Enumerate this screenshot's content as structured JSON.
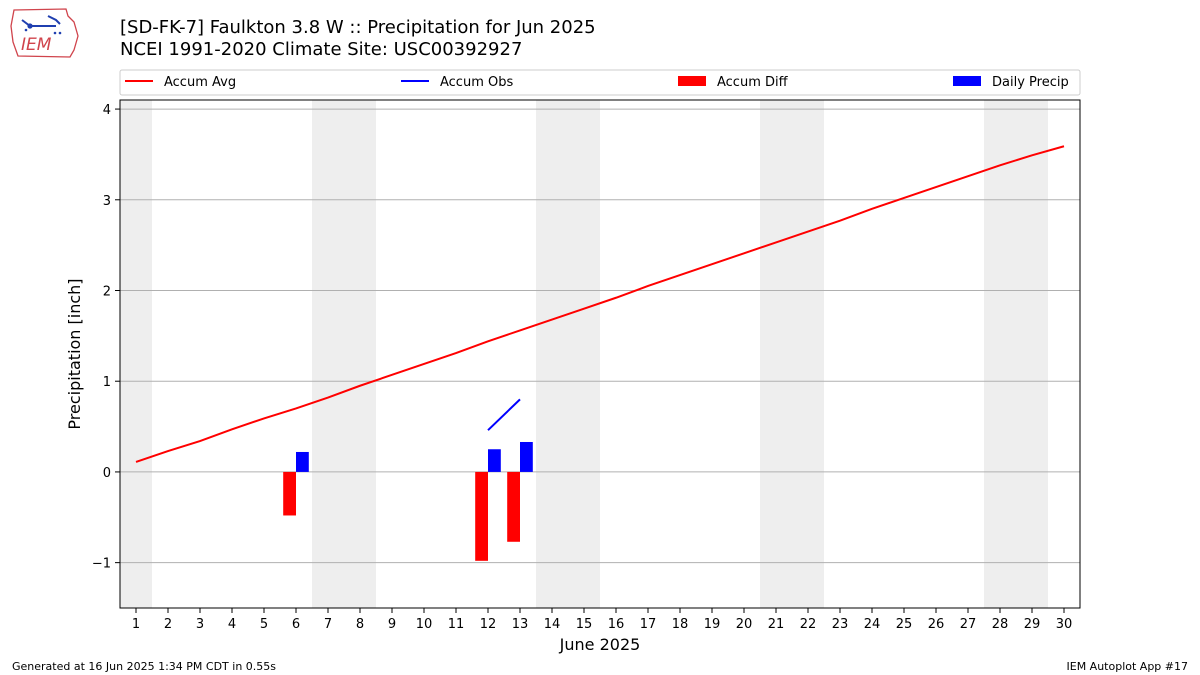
{
  "logo": {
    "text": "IEM"
  },
  "header": {
    "title_line1": "[SD-FK-7] Faulkton 3.8 W :: Precipitation for Jun 2025",
    "title_line2": "NCEI 1991-2020 Climate Site: USC00392927"
  },
  "footer": {
    "generated": "Generated at 16 Jun 2025 1:34 PM CDT in 0.55s",
    "app": "IEM Autoplot App #17"
  },
  "colors": {
    "accum_avg": "#ff0000",
    "accum_obs": "#0000ff",
    "accum_diff": "#ff0000",
    "daily_precip": "#0000ff",
    "weekend_band": "#eeeeee",
    "grid": "#b0b0b0"
  },
  "chart_data": {
    "type": "bar",
    "xlabel": "June 2025",
    "ylabel": "Precipitation [inch]",
    "xlim": [
      0.5,
      30.5
    ],
    "ylim": [
      -1.5,
      4.1
    ],
    "x_ticks": [
      1,
      2,
      3,
      4,
      5,
      6,
      7,
      8,
      9,
      10,
      11,
      12,
      13,
      14,
      15,
      16,
      17,
      18,
      19,
      20,
      21,
      22,
      23,
      24,
      25,
      26,
      27,
      28,
      29,
      30
    ],
    "y_ticks": [
      -1,
      0,
      1,
      2,
      3,
      4
    ],
    "y_tick_labels": [
      "−1",
      "0",
      "1",
      "2",
      "3",
      "4"
    ],
    "grid": "horizontal",
    "legend_position": "top",
    "legend": [
      "Accum Avg",
      "Accum Obs",
      "Accum Diff",
      "Daily Precip"
    ],
    "weekend_bands": [
      [
        0.5,
        1.5
      ],
      [
        6.5,
        8.5
      ],
      [
        13.5,
        15.5
      ],
      [
        20.5,
        22.5
      ],
      [
        27.5,
        29.5
      ]
    ],
    "series": [
      {
        "name": "Accum Avg",
        "type": "line",
        "x": [
          1,
          2,
          3,
          4,
          5,
          6,
          7,
          8,
          9,
          10,
          11,
          12,
          13,
          14,
          15,
          16,
          17,
          18,
          19,
          20,
          21,
          22,
          23,
          24,
          25,
          26,
          27,
          28,
          29,
          30
        ],
        "values": [
          0.11,
          0.23,
          0.34,
          0.47,
          0.59,
          0.7,
          0.82,
          0.95,
          1.07,
          1.19,
          1.31,
          1.44,
          1.56,
          1.68,
          1.8,
          1.92,
          2.05,
          2.17,
          2.29,
          2.41,
          2.53,
          2.65,
          2.77,
          2.9,
          3.02,
          3.14,
          3.26,
          3.38,
          3.49,
          3.59
        ]
      },
      {
        "name": "Accum Obs",
        "type": "line",
        "x": [
          12,
          13
        ],
        "values": [
          0.46,
          0.8
        ]
      },
      {
        "name": "Accum Diff",
        "type": "bar",
        "x": [
          6,
          12,
          13
        ],
        "values": [
          -0.48,
          -0.98,
          -0.77
        ]
      },
      {
        "name": "Daily Precip",
        "type": "bar",
        "x": [
          6,
          12,
          13
        ],
        "values": [
          0.22,
          0.25,
          0.33
        ]
      }
    ]
  }
}
